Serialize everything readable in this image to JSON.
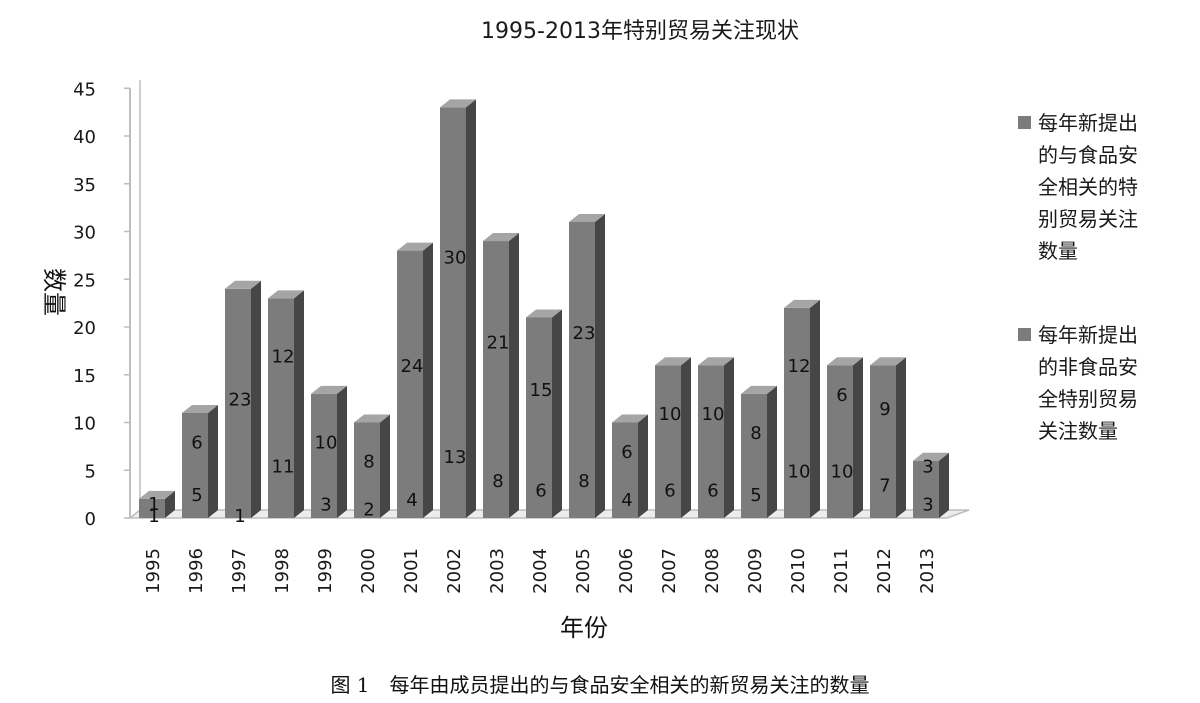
{
  "chart_data": {
    "type": "bar",
    "title": "1995-2013年特别贸易关注现状",
    "xlabel": "年份",
    "ylabel": "数量",
    "caption": "图 1　每年由成员提出的与食品安全相关的新贸易关注的数量",
    "ylim": [
      0,
      45
    ],
    "yticks": [
      0,
      5,
      10,
      15,
      20,
      25,
      30,
      35,
      40,
      45
    ],
    "categories": [
      "1995",
      "1996",
      "1997",
      "1998",
      "1999",
      "2000",
      "2001",
      "2002",
      "2003",
      "2004",
      "2005",
      "2006",
      "2007",
      "2008",
      "2009",
      "2010",
      "2011",
      "2012",
      "2013"
    ],
    "series": [
      {
        "name": "每年新提出的与食品安全相关的特别贸易关注数量",
        "legend_lines": [
          "每年新提出",
          "的与食品安",
          "全相关的特",
          "别贸易关注",
          "数量"
        ],
        "values": [
          1,
          5,
          1,
          11,
          3,
          2,
          4,
          13,
          8,
          6,
          8,
          4,
          6,
          6,
          5,
          10,
          10,
          7,
          3
        ]
      },
      {
        "name": "每年新提出的非食品安全特别贸易关注数量",
        "legend_lines": [
          "每年新提出",
          "的非食品安",
          "全特别贸易",
          "关注数量"
        ],
        "values": [
          1,
          6,
          23,
          12,
          10,
          8,
          24,
          30,
          21,
          15,
          23,
          6,
          10,
          10,
          8,
          12,
          6,
          9,
          3
        ]
      }
    ],
    "stacked": true,
    "legend_position": "right",
    "grid": false,
    "colors": {
      "front": "#7c7c7c",
      "side": "#464646",
      "top": "#a5a5a5",
      "floor": "#ececec",
      "axis": "#bdbdbd"
    }
  }
}
